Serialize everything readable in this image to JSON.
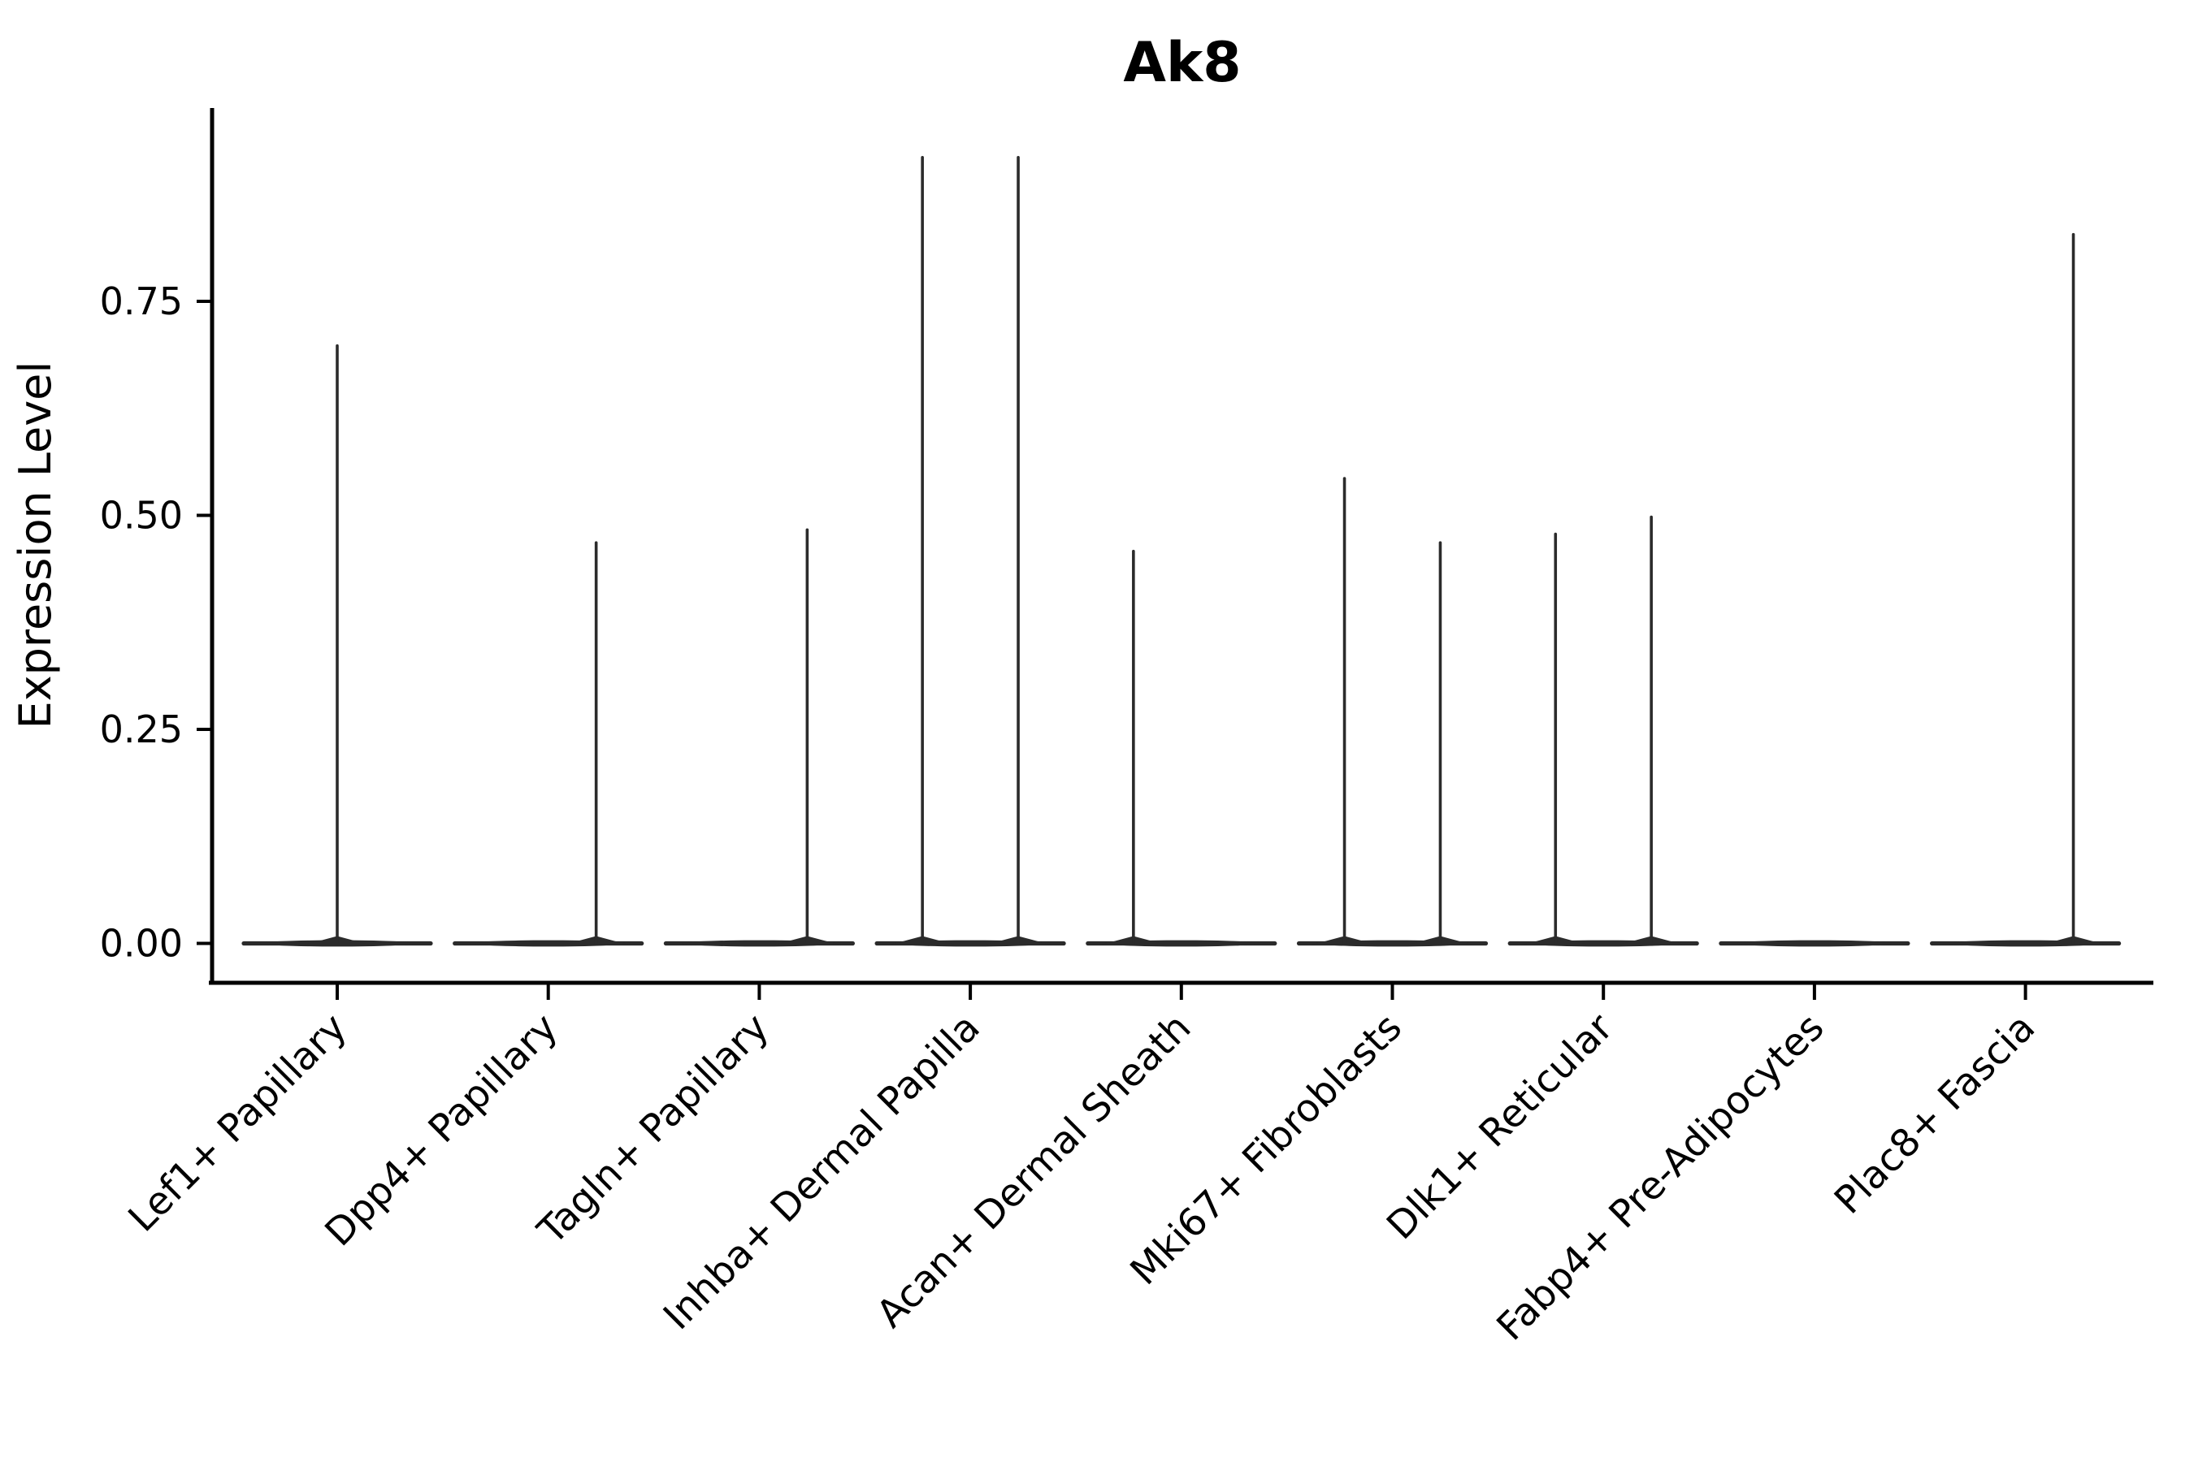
{
  "title": "Ak8",
  "chart_data": {
    "type": "violin",
    "title": "Ak8",
    "xlabel": "",
    "ylabel": "Expression Level",
    "ylim": [
      -0.046,
      0.973
    ],
    "grid": false,
    "legend": "none",
    "yticks": [
      {
        "value": 0.0,
        "label": "0.00"
      },
      {
        "value": 0.25,
        "label": "0.25"
      },
      {
        "value": 0.5,
        "label": "0.50"
      },
      {
        "value": 0.75,
        "label": "0.75"
      }
    ],
    "categories": [
      "Lef1+ Papillary",
      "Dpp4+ Papillary",
      "Tagln+ Papillary",
      "Inhba+ Dermal Papilla",
      "Acan+ Dermal Sheath",
      "Mki67+ Fibroblasts",
      "Dlk1+ Reticular",
      "Fabp4+ Pre-Adipocytes",
      "Plac8+ Fascia"
    ],
    "series": [
      {
        "category": "Lef1+ Papillary",
        "spikes": [
          {
            "offset": 0.0,
            "max": 0.7
          }
        ]
      },
      {
        "category": "Dpp4+ Papillary",
        "spikes": [
          {
            "offset": 0.227,
            "max": 0.47
          }
        ]
      },
      {
        "category": "Tagln+ Papillary",
        "spikes": [
          {
            "offset": 0.227,
            "max": 0.485
          }
        ]
      },
      {
        "category": "Inhba+ Dermal Papilla",
        "spikes": [
          {
            "offset": -0.227,
            "max": 0.92
          },
          {
            "offset": 0.227,
            "max": 0.92
          }
        ]
      },
      {
        "category": "Acan+ Dermal Sheath",
        "spikes": [
          {
            "offset": -0.227,
            "max": 0.46
          }
        ]
      },
      {
        "category": "Mki67+ Fibroblasts",
        "spikes": [
          {
            "offset": -0.227,
            "max": 0.545
          },
          {
            "offset": 0.227,
            "max": 0.47
          }
        ]
      },
      {
        "category": "Dlk1+ Reticular",
        "spikes": [
          {
            "offset": -0.227,
            "max": 0.48
          },
          {
            "offset": 0.227,
            "max": 0.5
          }
        ]
      },
      {
        "category": "Fabp4+ Pre-Adipocytes",
        "spikes": []
      },
      {
        "category": "Plac8+ Fascia",
        "spikes": [
          {
            "offset": 0.227,
            "max": 0.83
          }
        ]
      }
    ],
    "baseline_value": 0.0,
    "colors": {
      "violin_stroke": "#2b2b2b",
      "axis": "#000000",
      "background": "#ffffff"
    }
  }
}
